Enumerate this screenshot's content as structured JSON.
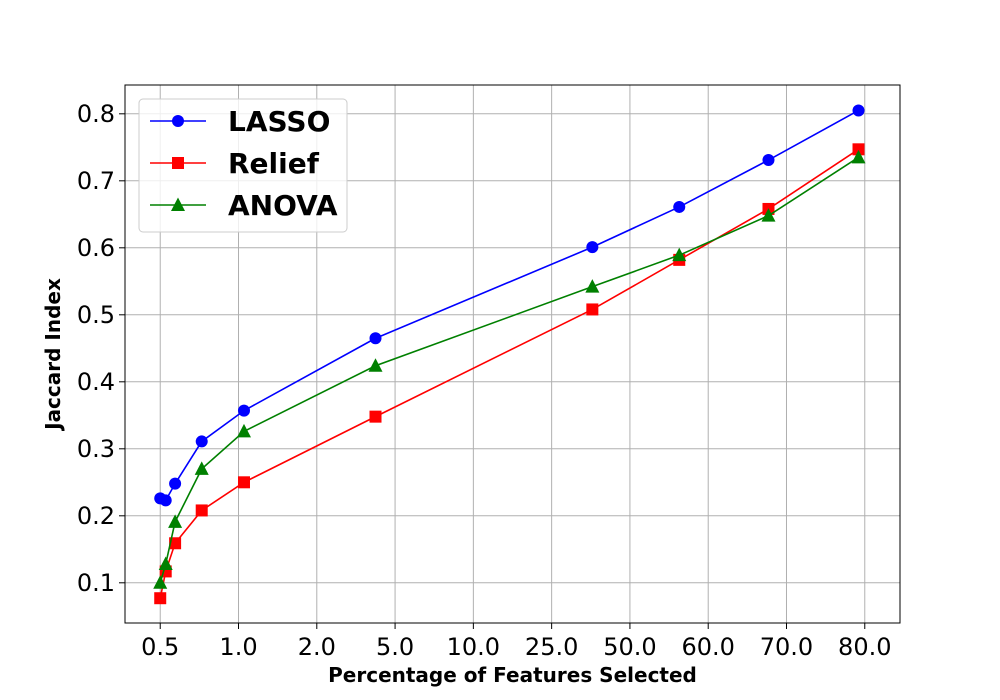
{
  "chart_data": {
    "type": "line",
    "title": "",
    "xlabel": "Percentage of Features Selected",
    "ylabel": "Jaccard Index",
    "x_tick_labels": [
      "0.5",
      "1.0",
      "2.0",
      "5.0",
      "10.0",
      "25.0",
      "50.0",
      "60.0",
      "70.0",
      "80.0"
    ],
    "x_tick_positions": [
      0,
      1,
      2,
      3,
      4,
      5,
      6,
      7,
      8,
      9
    ],
    "xlim": [
      -0.45,
      9.45
    ],
    "ylim": [
      0.04,
      0.843
    ],
    "y_ticks": [
      0.1,
      0.2,
      0.3,
      0.4,
      0.5,
      0.6,
      0.7,
      0.8
    ],
    "y_tick_labels": [
      "0.1",
      "0.2",
      "0.3",
      "0.4",
      "0.5",
      "0.6",
      "0.7",
      "0.8"
    ],
    "grid": true,
    "legend_position": "top-left",
    "series": [
      {
        "name": "LASSO",
        "color": "#0000ff",
        "marker": "circle",
        "x": [
          0.0,
          0.07,
          0.19,
          0.53,
          1.07,
          2.75,
          5.52,
          6.63,
          7.77,
          8.92
        ],
        "values": [
          0.226,
          0.223,
          0.248,
          0.311,
          0.357,
          0.465,
          0.601,
          0.661,
          0.731,
          0.805
        ]
      },
      {
        "name": "Relief",
        "color": "#ff0000",
        "marker": "square",
        "x": [
          0.0,
          0.07,
          0.19,
          0.53,
          1.07,
          2.75,
          5.52,
          6.63,
          7.77,
          8.92
        ],
        "values": [
          0.077,
          0.117,
          0.159,
          0.208,
          0.25,
          0.348,
          0.508,
          0.582,
          0.658,
          0.747
        ]
      },
      {
        "name": "ANOVA",
        "color": "#008000",
        "marker": "triangle",
        "x": [
          0.0,
          0.07,
          0.19,
          0.53,
          1.07,
          2.75,
          5.52,
          6.63,
          7.77,
          8.92
        ],
        "values": [
          0.1,
          0.128,
          0.191,
          0.27,
          0.326,
          0.424,
          0.542,
          0.589,
          0.648,
          0.735
        ]
      }
    ]
  }
}
